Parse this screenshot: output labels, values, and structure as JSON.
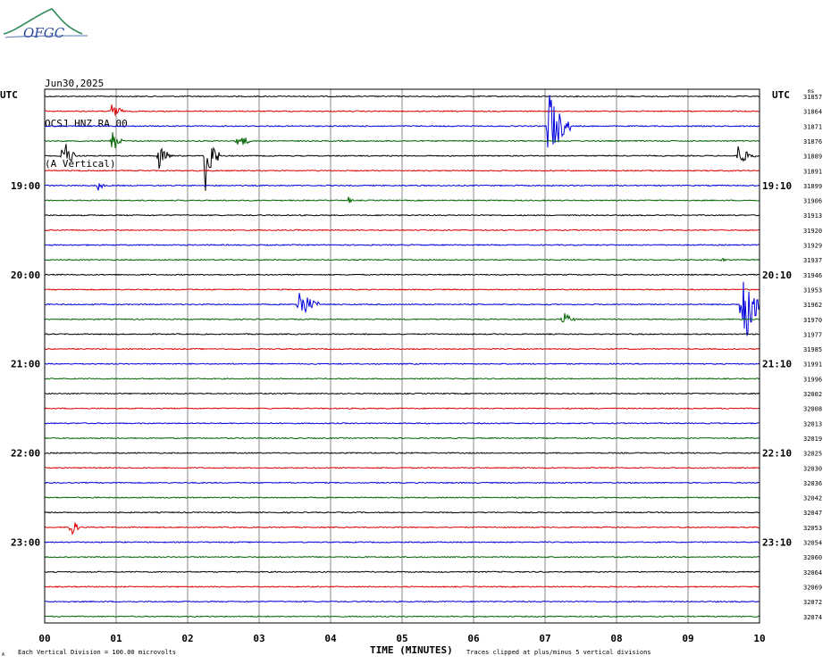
{
  "logo": {
    "text": "OFGC"
  },
  "header": {
    "date": "Jun30,2025",
    "station": "OCSJ HNZ RA 00",
    "component": "(A Vertical)"
  },
  "utc_left": "UTC",
  "utc_right": "UTC",
  "units_tag": "ms",
  "footer": {
    "scale_note": "Each Vertical Division =  100.00 microvolts",
    "clip_note": "Traces clipped at plus/minus 5 vertical divisions",
    "corner_mark": "A"
  },
  "colors": {
    "trace_cycle": [
      "#000000",
      "#dd0000",
      "#0000dd",
      "#006400"
    ],
    "grid": "#888888"
  },
  "chart_data": {
    "type": "line",
    "title": "",
    "xlabel": "TIME (MINUTES)",
    "ylabel": "",
    "xlim": [
      0,
      10
    ],
    "x_ticks": [
      "00",
      "01",
      "02",
      "03",
      "04",
      "05",
      "06",
      "07",
      "08",
      "09",
      "10"
    ],
    "trace_count": 36,
    "trace_minutes": 10,
    "left_time_labels": [
      {
        "label": "19:00",
        "trace": 6
      },
      {
        "label": "20:00",
        "trace": 12
      },
      {
        "label": "21:00",
        "trace": 18
      },
      {
        "label": "22:00",
        "trace": 24
      },
      {
        "label": "23:00",
        "trace": 30
      }
    ],
    "right_time_labels": [
      {
        "label": "19:10",
        "trace": 6
      },
      {
        "label": "20:10",
        "trace": 12
      },
      {
        "label": "21:10",
        "trace": 18
      },
      {
        "label": "22:10",
        "trace": 24
      },
      {
        "label": "23:10",
        "trace": 30
      }
    ],
    "trace_counts": [
      "31857",
      "31864",
      "31871",
      "31876",
      "31889",
      "31891",
      "31899",
      "31906",
      "31913",
      "31920",
      "31929",
      "31937",
      "31946",
      "31953",
      "31962",
      "31970",
      "31977",
      "31985",
      "31991",
      "31996",
      "32002",
      "32008",
      "32013",
      "32019",
      "32025",
      "32030",
      "32036",
      "32042",
      "32047",
      "32053",
      "32054",
      "32060",
      "32064",
      "32069",
      "32072",
      "32074"
    ],
    "events": [
      {
        "trace": 1,
        "minute": 0.95,
        "amplitude": 1.0,
        "duration": 0.15
      },
      {
        "trace": 2,
        "minute": 7.05,
        "amplitude": 3.0,
        "duration": 0.3
      },
      {
        "trace": 3,
        "minute": 0.95,
        "amplitude": 0.9,
        "duration": 0.15
      },
      {
        "trace": 3,
        "minute": 2.7,
        "amplitude": 0.8,
        "duration": 0.2
      },
      {
        "trace": 4,
        "minute": 0.25,
        "amplitude": 1.5,
        "duration": 0.2
      },
      {
        "trace": 4,
        "minute": 1.6,
        "amplitude": 1.0,
        "duration": 0.2
      },
      {
        "trace": 4,
        "minute": 2.25,
        "amplitude": 2.6,
        "duration": 0.2
      },
      {
        "trace": 4,
        "minute": 9.7,
        "amplitude": 0.8,
        "duration": 0.25
      },
      {
        "trace": 6,
        "minute": 0.75,
        "amplitude": 0.5,
        "duration": 0.1
      },
      {
        "trace": 7,
        "minute": 4.25,
        "amplitude": 0.25,
        "duration": 0.1
      },
      {
        "trace": 11,
        "minute": 9.45,
        "amplitude": 0.2,
        "duration": 0.15
      },
      {
        "trace": 14,
        "minute": 3.55,
        "amplitude": 1.3,
        "duration": 0.3
      },
      {
        "trace": 14,
        "minute": 9.75,
        "amplitude": 4.0,
        "duration": 0.3
      },
      {
        "trace": 15,
        "minute": 7.25,
        "amplitude": 0.6,
        "duration": 0.2
      },
      {
        "trace": 29,
        "minute": 0.35,
        "amplitude": 1.0,
        "duration": 0.15
      }
    ]
  }
}
